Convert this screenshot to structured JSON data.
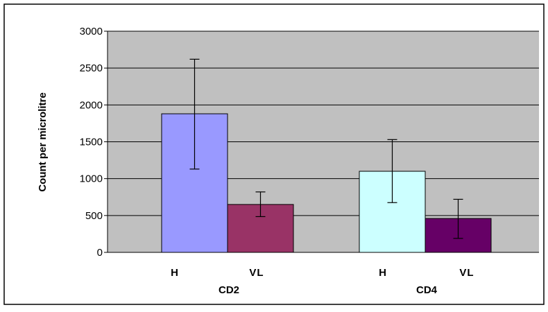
{
  "chart_data": {
    "type": "bar",
    "title": "",
    "xlabel": "",
    "ylabel": "Count per microlitre",
    "ylim": [
      0,
      3000
    ],
    "yticks": [
      0,
      500,
      1000,
      1500,
      2000,
      2500,
      3000
    ],
    "ytick_labels": [
      "0",
      "500",
      "1000",
      "1500",
      "2000",
      "2500",
      "3000"
    ],
    "grid": true,
    "legend": "none",
    "groups": [
      "CD2",
      "CD4"
    ],
    "bars": [
      {
        "group": "CD2",
        "label": "H",
        "value": 1880,
        "err_low": 1130,
        "err_high": 2620,
        "color": "#9999ff"
      },
      {
        "group": "CD2",
        "label": "VL",
        "value": 650,
        "err_low": 485,
        "err_high": 820,
        "color": "#993366"
      },
      {
        "group": "CD4",
        "label": "H",
        "value": 1100,
        "err_low": 675,
        "err_high": 1530,
        "color": "#ccffff"
      },
      {
        "group": "CD4",
        "label": "VL",
        "value": 460,
        "err_low": 190,
        "err_high": 720,
        "color": "#660066"
      }
    ],
    "plot_background": "#c0c0c0"
  }
}
